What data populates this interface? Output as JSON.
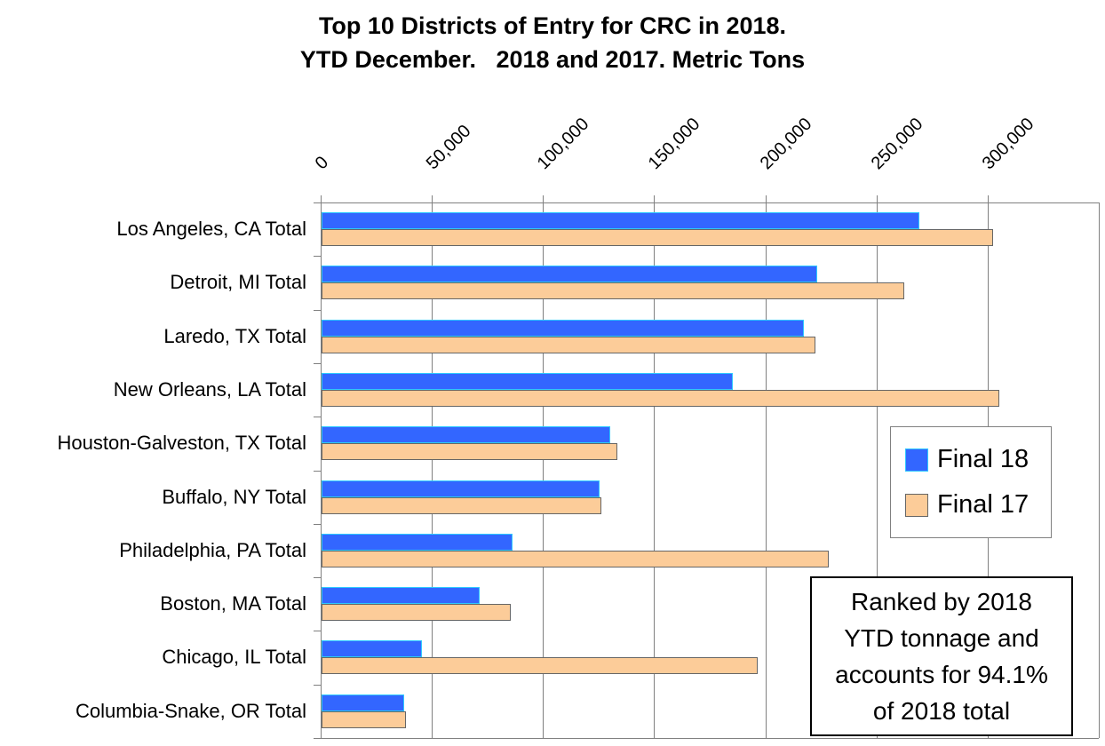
{
  "colors": {
    "background": "#FFFFFF",
    "gridline": "#808080",
    "plot_border": "#808080",
    "legend_border": "#808080",
    "annotation_border": "#000000"
  },
  "chart_data": {
    "type": "bar",
    "orientation": "horizontal",
    "title": "Top 10 Districts of Entry for CRC in 2018.\nYTD December.   2018 and 2017. Metric Tons",
    "categories": [
      "Los Angeles, CA Total",
      "Detroit, MI Total",
      "Laredo, TX Total",
      "New Orleans, LA Total",
      "Houston-Galveston, TX Total",
      "Buffalo, NY Total",
      "Philadelphia, PA Total",
      "Boston, MA Total",
      "Chicago, IL Total",
      "Columbia-Snake, OR Total"
    ],
    "series": [
      {
        "name": "Final 18",
        "fill": "#3366FF",
        "border": "#2EC9FF",
        "values": [
          269000,
          223000,
          217000,
          185000,
          130000,
          125000,
          86000,
          71000,
          45000,
          37000
        ]
      },
      {
        "name": "Final 17",
        "fill": "#FCCC99",
        "border": "#666666",
        "values": [
          302000,
          262000,
          222000,
          305000,
          133000,
          126000,
          228000,
          85000,
          196000,
          38000
        ]
      }
    ],
    "x_ticks": [
      0,
      50000,
      100000,
      150000,
      200000,
      250000,
      300000
    ],
    "x_tick_labels": [
      "0",
      "50,000",
      "100,000",
      "150,000",
      "200,000",
      "250,000",
      "300,000"
    ],
    "xlim": [
      0,
      350000
    ],
    "grid": true,
    "legend_position": "middle-right"
  },
  "annotation": {
    "text": "Ranked by 2018\nYTD tonnage and\naccounts for 94.1%\nof 2018 total"
  }
}
